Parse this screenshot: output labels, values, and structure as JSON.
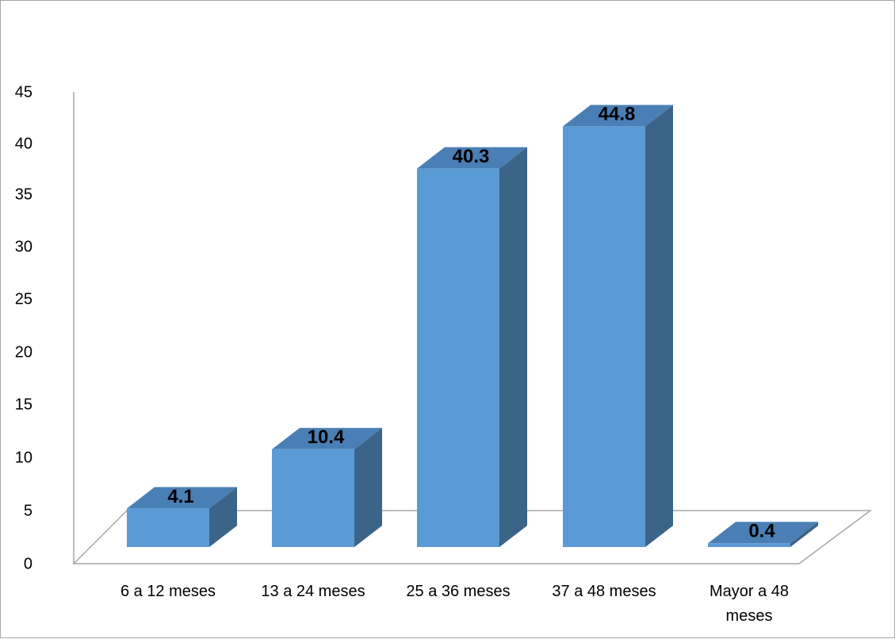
{
  "chart_data": {
    "type": "bar",
    "categories": [
      "6 a 12 meses",
      "13 a 24 meses",
      "25 a 36 meses",
      "37 a 48 meses",
      "Mayor a 48 meses"
    ],
    "category_label_lines": [
      [
        "6 a 12 meses"
      ],
      [
        "13 a 24 meses"
      ],
      [
        "25 a 36 meses"
      ],
      [
        "37 a 48 meses"
      ],
      [
        "Mayor a 48",
        "meses"
      ]
    ],
    "values": [
      4.1,
      10.4,
      40.3,
      44.8,
      0.4
    ],
    "data_labels": [
      "4.1",
      "10.4",
      "40.3",
      "44.8",
      "0.4"
    ],
    "y_ticks": [
      "0",
      "5",
      "10",
      "15",
      "20",
      "25",
      "30",
      "35",
      "40",
      "45"
    ],
    "ylim": [
      0,
      45
    ],
    "title": "",
    "xlabel": "",
    "ylabel": "",
    "three_d": true,
    "legend": "none",
    "grid": false,
    "colors": {
      "bar_front": "#5b9bd5",
      "bar_top": "#4a7fb5",
      "bar_side": "#3a6488",
      "axis_line": "#a6a6a6"
    }
  }
}
